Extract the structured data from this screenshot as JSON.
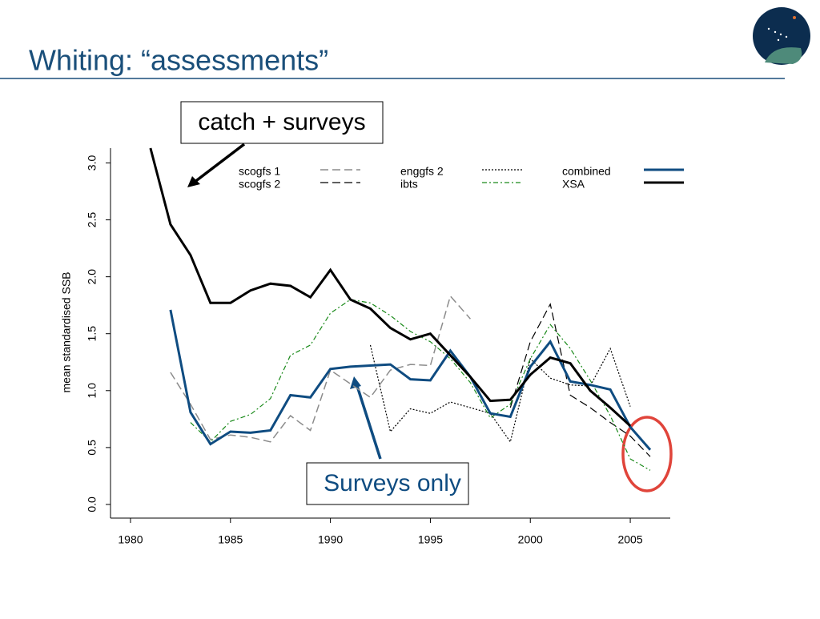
{
  "header": {
    "title": "Whiting: “assessments”"
  },
  "chart_data": {
    "type": "line",
    "ylabel": "mean standardised SSB",
    "annotations": [
      "catch + surveys",
      "Surveys only"
    ],
    "x": [
      1981,
      1982,
      1983,
      1984,
      1985,
      1986,
      1987,
      1988,
      1989,
      1990,
      1991,
      1992,
      1993,
      1994,
      1995,
      1996,
      1997,
      1998,
      1999,
      2000,
      2001,
      2002,
      2003,
      2004,
      2005,
      2006
    ],
    "xlim": [
      1979,
      2007
    ],
    "xticks": [
      1980,
      1985,
      1990,
      1995,
      2000,
      2005
    ],
    "ylim": [
      -0.12,
      3.13
    ],
    "yticks": [
      {
        "value": 0,
        "label": "0.0"
      },
      0.5,
      {
        "value": 1,
        "label": "1.0"
      },
      1.5,
      {
        "value": 2,
        "label": "2.0"
      },
      2.5,
      {
        "value": 3,
        "label": "3.0"
      }
    ],
    "series": [
      {
        "name": "scogfs 1",
        "color": "#8c8c8c",
        "dash": "10,5",
        "width": 1.5,
        "values": [
          null,
          1.16,
          0.88,
          0.57,
          0.61,
          0.59,
          0.55,
          0.78,
          0.65,
          1.18,
          1.06,
          0.94,
          1.18,
          1.23,
          1.22,
          1.83,
          1.63,
          null,
          null,
          null,
          null,
          null,
          null,
          null,
          null,
          null
        ]
      },
      {
        "name": "scogfs 2",
        "color": "#000000",
        "dash": "10,5",
        "width": 1.2,
        "values": [
          null,
          null,
          null,
          null,
          null,
          null,
          null,
          null,
          null,
          null,
          null,
          null,
          null,
          null,
          null,
          null,
          null,
          null,
          0.85,
          1.43,
          1.76,
          0.96,
          0.85,
          0.72,
          0.6,
          0.42
        ]
      },
      {
        "name": "enggfs 2",
        "color": "#000000",
        "dash": "2,2",
        "width": 1.2,
        "values": [
          null,
          null,
          null,
          null,
          null,
          null,
          null,
          null,
          null,
          null,
          null,
          1.4,
          0.64,
          0.84,
          0.8,
          0.9,
          0.85,
          0.8,
          0.55,
          1.28,
          1.11,
          1.05,
          1.04,
          1.37,
          0.86,
          null
        ]
      },
      {
        "name": "ibts",
        "color": "#1a8a1a",
        "dash": "6,3,2,3",
        "width": 1.2,
        "values": [
          null,
          null,
          0.72,
          0.55,
          0.73,
          0.79,
          0.93,
          1.31,
          1.4,
          1.68,
          1.8,
          1.77,
          1.66,
          1.52,
          1.43,
          1.28,
          1.07,
          0.76,
          0.88,
          1.28,
          1.58,
          1.37,
          1.09,
          0.78,
          0.4,
          0.3
        ]
      },
      {
        "name": "combined",
        "color": "#0f4c81",
        "dash": "none",
        "width": 3,
        "values": [
          null,
          1.71,
          0.81,
          0.53,
          0.64,
          0.63,
          0.65,
          0.96,
          0.94,
          1.19,
          1.21,
          1.22,
          1.23,
          1.1,
          1.09,
          1.35,
          1.12,
          0.8,
          0.77,
          1.21,
          1.43,
          1.08,
          1.05,
          1.01,
          0.68,
          0.48
        ]
      },
      {
        "name": "XSA",
        "color": "#000000",
        "dash": "none",
        "width": 3,
        "values": [
          3.13,
          2.46,
          2.19,
          1.77,
          1.77,
          1.88,
          1.94,
          1.92,
          1.82,
          2.06,
          1.8,
          1.72,
          1.55,
          1.45,
          1.5,
          1.31,
          1.12,
          0.91,
          0.92,
          1.14,
          1.29,
          1.24,
          1.0,
          0.85,
          0.69,
          null
        ]
      }
    ]
  }
}
